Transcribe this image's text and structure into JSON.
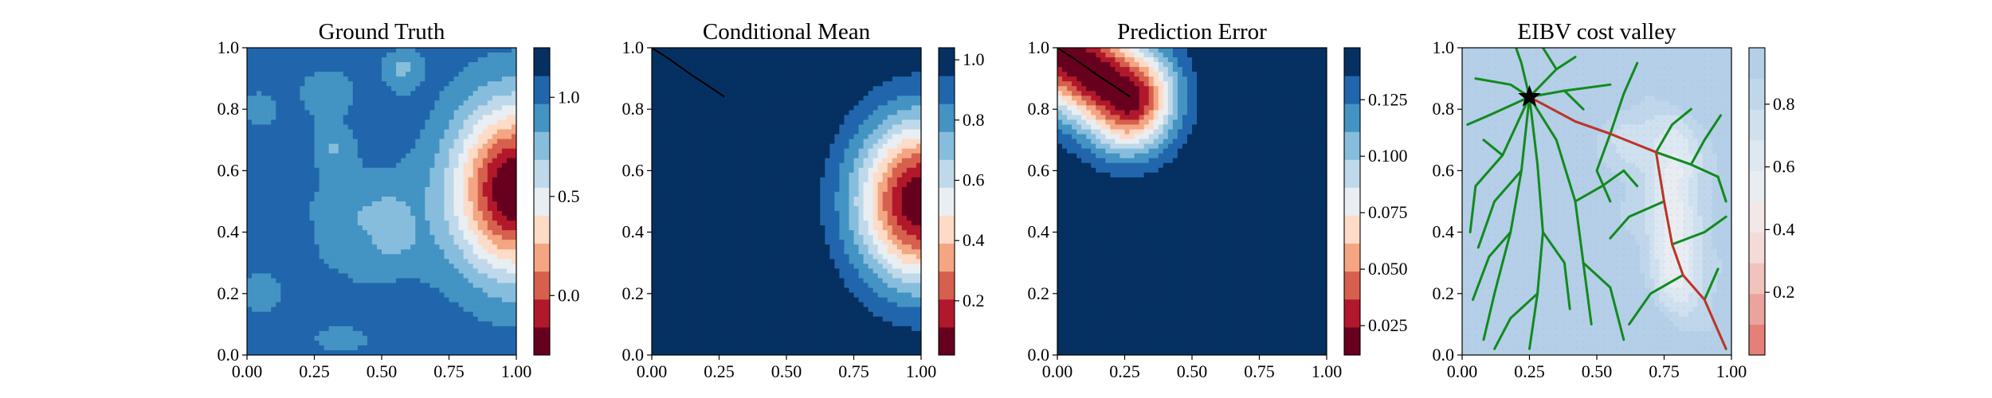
{
  "chart_data": [
    {
      "type": "heatmap",
      "title": "Ground Truth",
      "xlim": [
        0,
        1
      ],
      "ylim": [
        0,
        1
      ],
      "xticks": [
        "0.00",
        "0.25",
        "0.50",
        "0.75",
        "1.00"
      ],
      "yticks": [
        "0.0",
        "0.2",
        "0.4",
        "0.6",
        "0.8",
        "1.0"
      ],
      "colormap": "RdBu",
      "colorbar": {
        "range": [
          -0.3,
          1.25
        ],
        "ticks": [
          "0.0",
          "0.5",
          "1.0"
        ]
      },
      "field": {
        "background": 1.05,
        "low_patches": [
          {
            "cx": 0.45,
            "cy": 0.42,
            "sx": 0.16,
            "sy": 0.14,
            "amp": 0.2
          },
          {
            "cx": 0.3,
            "cy": 0.85,
            "sx": 0.07,
            "sy": 0.06,
            "amp": 0.2
          },
          {
            "cx": 0.32,
            "cy": 0.68,
            "sx": 0.05,
            "sy": 0.05,
            "amp": 0.2
          },
          {
            "cx": 0.05,
            "cy": 0.8,
            "sx": 0.04,
            "sy": 0.04,
            "amp": 0.2
          },
          {
            "cx": 0.58,
            "cy": 0.92,
            "sx": 0.05,
            "sy": 0.05,
            "amp": 0.2
          },
          {
            "cx": 0.55,
            "cy": 0.42,
            "sx": 0.05,
            "sy": 0.06,
            "amp": 0.2
          }
        ],
        "high_patches": [
          {
            "cx": 0.05,
            "cy": 0.2,
            "sx": 0.08,
            "sy": 0.07,
            "amp": -0.12
          },
          {
            "cx": 0.35,
            "cy": 0.05,
            "sx": 0.1,
            "sy": 0.04,
            "amp": -0.12
          },
          {
            "cx": 0.58,
            "cy": 0.95,
            "sx": 0.05,
            "sy": 0.03,
            "amp": -0.1
          }
        ],
        "hotspot": {
          "cx": 1.0,
          "cy": 0.54,
          "sx": 0.16,
          "sy": 0.19,
          "amp": -1.4
        }
      }
    },
    {
      "type": "heatmap",
      "title": "Conditional Mean",
      "xlim": [
        0,
        1
      ],
      "ylim": [
        0,
        1
      ],
      "xticks": [
        "0.00",
        "0.25",
        "0.50",
        "0.75",
        "1.00"
      ],
      "yticks": [
        "0.0",
        "0.2",
        "0.4",
        "0.6",
        "0.8",
        "1.0"
      ],
      "colormap": "RdBu",
      "colorbar": {
        "range": [
          0.02,
          1.04
        ],
        "ticks": [
          "0.2",
          "0.4",
          "0.6",
          "0.8",
          "1.0"
        ]
      },
      "field": {
        "background": 1.04,
        "hotspot": {
          "cx": 1.0,
          "cy": 0.5,
          "sx": 0.17,
          "sy": 0.19,
          "amp": -1.02
        }
      },
      "path": [
        [
          0.0,
          1.0
        ],
        [
          0.07,
          0.96
        ],
        [
          0.15,
          0.91
        ],
        [
          0.22,
          0.87
        ],
        [
          0.27,
          0.84
        ]
      ]
    },
    {
      "type": "heatmap",
      "title": "Prediction Error",
      "xlim": [
        0,
        1
      ],
      "ylim": [
        0,
        1
      ],
      "xticks": [
        "0.00",
        "0.25",
        "0.50",
        "0.75",
        "1.00"
      ],
      "yticks": [
        "0.0",
        "0.2",
        "0.4",
        "0.6",
        "0.8",
        "1.0"
      ],
      "colormap": "RdBu",
      "colorbar": {
        "range": [
          0.012,
          0.148
        ],
        "ticks": [
          "0.025",
          "0.050",
          "0.075",
          "0.100",
          "0.125"
        ]
      },
      "field": {
        "background": 0.148,
        "segment": {
          "x1": 0.0,
          "y1": 1.0,
          "x2": 0.26,
          "y2": 0.84,
          "sigma": 0.12,
          "amp": -0.136
        }
      },
      "path": [
        [
          0.0,
          1.0
        ],
        [
          0.07,
          0.96
        ],
        [
          0.15,
          0.91
        ],
        [
          0.22,
          0.87
        ],
        [
          0.27,
          0.84
        ]
      ]
    },
    {
      "type": "heatmap",
      "title": "EIBV cost valley",
      "xlim": [
        0,
        1
      ],
      "ylim": [
        0,
        1
      ],
      "xticks": [
        "0.00",
        "0.25",
        "0.50",
        "0.75",
        "1.00"
      ],
      "yticks": [
        "0.0",
        "0.2",
        "0.4",
        "0.6",
        "0.8",
        "1.0"
      ],
      "colormap": "RdBu",
      "colorbar": {
        "range": [
          0.0,
          0.98
        ],
        "ticks": [
          "0.2",
          "0.4",
          "0.6",
          "0.8"
        ]
      },
      "field": {
        "background": 0.92,
        "cool_patches": [
          {
            "cx": 0.78,
            "cy": 0.55,
            "sx": 0.07,
            "sy": 0.18,
            "amp": -0.38
          },
          {
            "cx": 0.8,
            "cy": 0.25,
            "sx": 0.07,
            "sy": 0.1,
            "amp": -0.3
          },
          {
            "cx": 0.62,
            "cy": 0.7,
            "sx": 0.06,
            "sy": 0.06,
            "amp": -0.2
          }
        ],
        "blue_patches": [
          {
            "cx": 0.08,
            "cy": 0.15,
            "sx": 0.12,
            "sy": 0.1,
            "amp": 0.3
          },
          {
            "cx": 0.55,
            "cy": 0.08,
            "sx": 0.14,
            "sy": 0.08,
            "amp": 0.28
          },
          {
            "cx": 0.2,
            "cy": 0.65,
            "sx": 0.1,
            "sy": 0.1,
            "amp": 0.2
          },
          {
            "cx": 0.85,
            "cy": 0.9,
            "sx": 0.1,
            "sy": 0.08,
            "amp": 0.25
          },
          {
            "cx": 0.4,
            "cy": 0.9,
            "sx": 0.1,
            "sy": 0.08,
            "amp": 0.2
          }
        ]
      },
      "start": [
        0.25,
        0.84
      ],
      "tree_root": [
        0.25,
        0.84
      ],
      "tree_branches": [
        [
          [
            0.25,
            0.84
          ],
          [
            0.18,
            0.88
          ],
          [
            0.05,
            0.9
          ]
        ],
        [
          [
            0.25,
            0.84
          ],
          [
            0.22,
            0.95
          ],
          [
            0.2,
            1.0
          ]
        ],
        [
          [
            0.25,
            0.84
          ],
          [
            0.35,
            0.93
          ],
          [
            0.42,
            0.97
          ]
        ],
        [
          [
            0.25,
            0.84
          ],
          [
            0.38,
            0.86
          ],
          [
            0.55,
            0.88
          ]
        ],
        [
          [
            0.25,
            0.84
          ],
          [
            0.1,
            0.78
          ],
          [
            0.02,
            0.75
          ]
        ],
        [
          [
            0.25,
            0.84
          ],
          [
            0.15,
            0.65
          ],
          [
            0.05,
            0.55
          ],
          [
            0.03,
            0.4
          ]
        ],
        [
          [
            0.25,
            0.84
          ],
          [
            0.22,
            0.6
          ],
          [
            0.18,
            0.4
          ],
          [
            0.12,
            0.2
          ],
          [
            0.08,
            0.05
          ]
        ],
        [
          [
            0.25,
            0.84
          ],
          [
            0.28,
            0.62
          ],
          [
            0.3,
            0.4
          ],
          [
            0.28,
            0.2
          ],
          [
            0.25,
            0.02
          ]
        ],
        [
          [
            0.25,
            0.84
          ],
          [
            0.35,
            0.7
          ],
          [
            0.42,
            0.5
          ],
          [
            0.45,
            0.3
          ],
          [
            0.48,
            0.1
          ]
        ],
        [
          [
            0.25,
            0.84
          ],
          [
            0.42,
            0.76
          ],
          [
            0.55,
            0.72
          ],
          [
            0.72,
            0.66
          ]
        ],
        [
          [
            0.72,
            0.66
          ],
          [
            0.85,
            0.62
          ],
          [
            0.95,
            0.58
          ]
        ],
        [
          [
            0.72,
            0.66
          ],
          [
            0.78,
            0.75
          ],
          [
            0.85,
            0.8
          ]
        ],
        [
          [
            0.72,
            0.66
          ],
          [
            0.75,
            0.5
          ],
          [
            0.78,
            0.36
          ],
          [
            0.82,
            0.26
          ],
          [
            0.9,
            0.18
          ],
          [
            0.98,
            0.02
          ]
        ],
        [
          [
            0.78,
            0.36
          ],
          [
            0.9,
            0.4
          ],
          [
            0.98,
            0.45
          ]
        ],
        [
          [
            0.75,
            0.5
          ],
          [
            0.62,
            0.45
          ],
          [
            0.55,
            0.38
          ]
        ],
        [
          [
            0.82,
            0.26
          ],
          [
            0.7,
            0.2
          ],
          [
            0.62,
            0.1
          ]
        ],
        [
          [
            0.9,
            0.18
          ],
          [
            0.95,
            0.28
          ]
        ],
        [
          [
            0.55,
            0.72
          ],
          [
            0.6,
            0.85
          ],
          [
            0.65,
            0.95
          ]
        ],
        [
          [
            0.55,
            0.72
          ],
          [
            0.5,
            0.6
          ],
          [
            0.55,
            0.5
          ]
        ],
        [
          [
            0.42,
            0.5
          ],
          [
            0.52,
            0.55
          ],
          [
            0.6,
            0.6
          ]
        ],
        [
          [
            0.3,
            0.4
          ],
          [
            0.38,
            0.3
          ],
          [
            0.4,
            0.15
          ]
        ],
        [
          [
            0.22,
            0.6
          ],
          [
            0.12,
            0.5
          ],
          [
            0.06,
            0.35
          ]
        ],
        [
          [
            0.15,
            0.65
          ],
          [
            0.08,
            0.7
          ]
        ],
        [
          [
            0.18,
            0.4
          ],
          [
            0.1,
            0.32
          ],
          [
            0.04,
            0.18
          ]
        ],
        [
          [
            0.28,
            0.2
          ],
          [
            0.18,
            0.12
          ],
          [
            0.12,
            0.02
          ]
        ],
        [
          [
            0.45,
            0.3
          ],
          [
            0.55,
            0.22
          ],
          [
            0.6,
            0.05
          ]
        ],
        [
          [
            0.85,
            0.62
          ],
          [
            0.9,
            0.7
          ],
          [
            0.96,
            0.78
          ]
        ],
        [
          [
            0.95,
            0.58
          ],
          [
            0.98,
            0.5
          ]
        ],
        [
          [
            0.6,
            0.6
          ],
          [
            0.65,
            0.55
          ]
        ],
        [
          [
            0.35,
            0.93
          ],
          [
            0.3,
            1.0
          ]
        ],
        [
          [
            0.38,
            0.86
          ],
          [
            0.45,
            0.8
          ]
        ]
      ],
      "selected_path": [
        [
          0.25,
          0.84
        ],
        [
          0.42,
          0.76
        ],
        [
          0.55,
          0.72
        ],
        [
          0.72,
          0.66
        ],
        [
          0.75,
          0.5
        ],
        [
          0.78,
          0.36
        ],
        [
          0.82,
          0.26
        ],
        [
          0.9,
          0.18
        ],
        [
          0.98,
          0.02
        ]
      ]
    }
  ]
}
